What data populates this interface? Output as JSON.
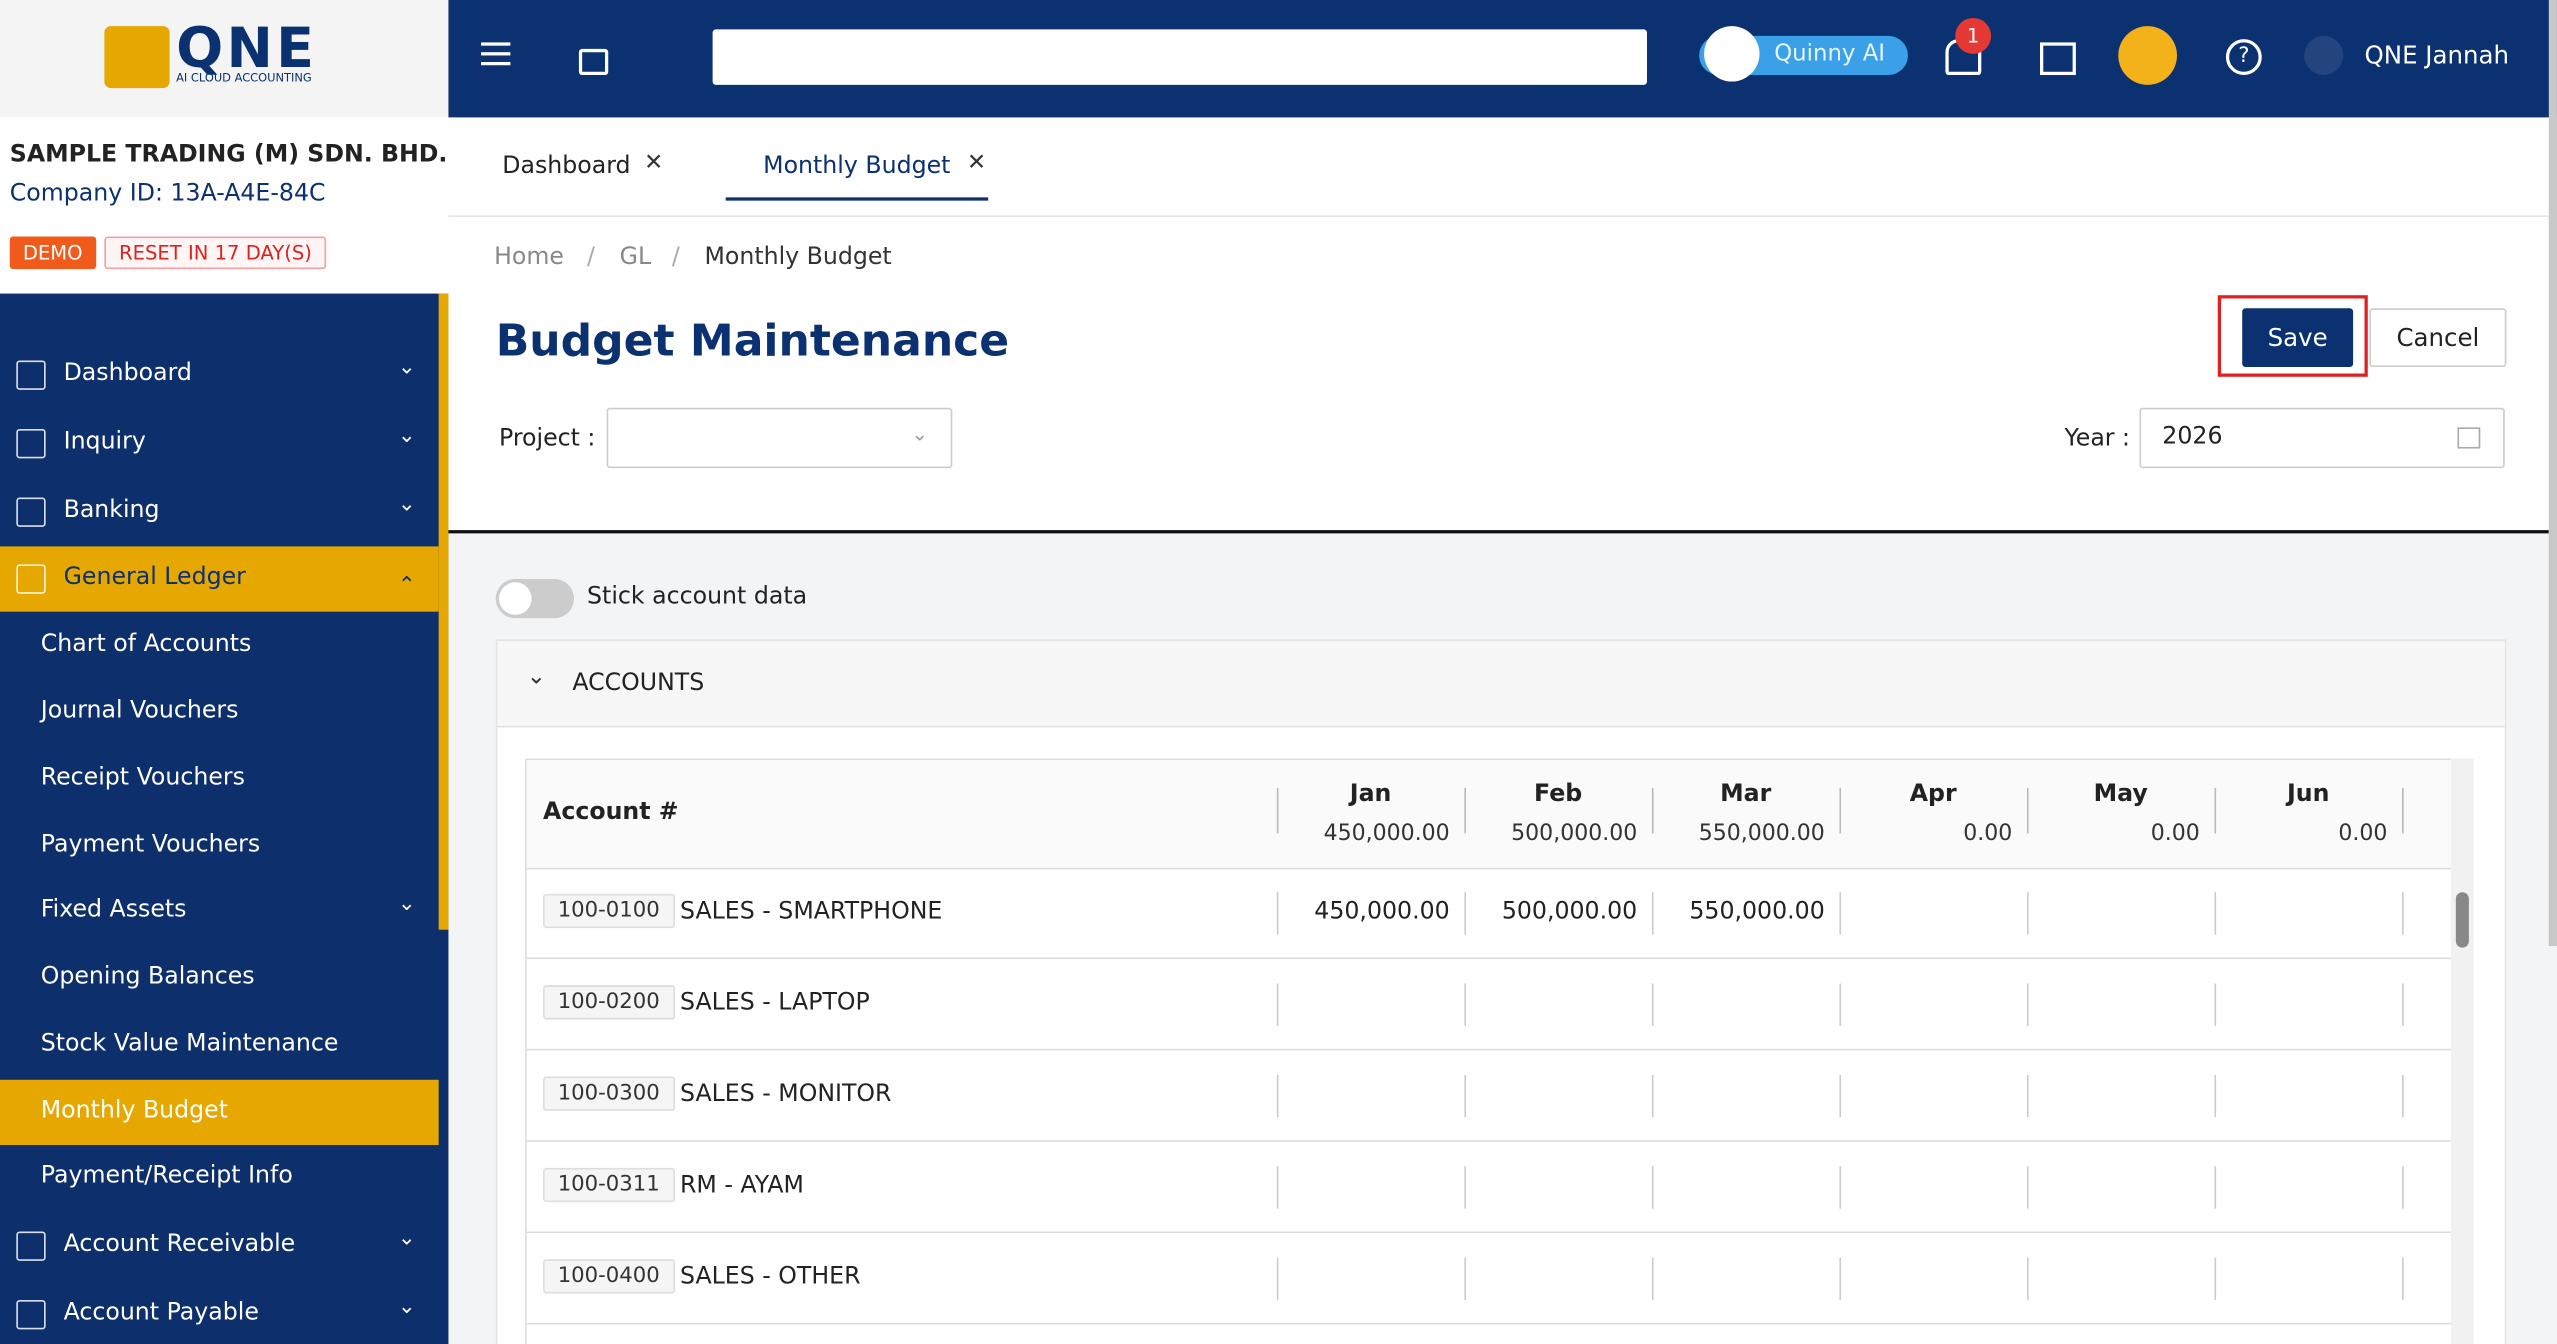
{
  "logo": {
    "name": "QNE",
    "tagline": "AI CLOUD ACCOUNTING"
  },
  "company": {
    "name": "SAMPLE TRADING (M) SDN. BHD.",
    "id": "Company ID: 13A-A4E-84C",
    "badges": [
      "DEMO",
      "RESET IN 17 DAY(S)"
    ]
  },
  "sidebar": {
    "items": [
      {
        "label": "Dashboard",
        "level": 1,
        "chevron": "down"
      },
      {
        "label": "Inquiry",
        "level": 1,
        "chevron": "down"
      },
      {
        "label": "Banking",
        "level": 1,
        "chevron": "down"
      },
      {
        "label": "General Ledger",
        "level": 1,
        "chevron": "up",
        "active": true
      },
      {
        "label": "Chart of Accounts",
        "level": 2
      },
      {
        "label": "Journal Vouchers",
        "level": 2
      },
      {
        "label": "Receipt Vouchers",
        "level": 2
      },
      {
        "label": "Payment Vouchers",
        "level": 2
      },
      {
        "label": "Fixed Assets",
        "level": 2,
        "chevron": "down"
      },
      {
        "label": "Opening Balances",
        "level": 2
      },
      {
        "label": "Stock Value Maintenance",
        "level": 2
      },
      {
        "label": "Monthly Budget",
        "level": 2,
        "active": true
      },
      {
        "label": "Payment/Receipt Info",
        "level": 2
      },
      {
        "label": "Account Receivable",
        "level": 1,
        "chevron": "down"
      },
      {
        "label": "Account Payable",
        "level": 1,
        "chevron": "down"
      }
    ]
  },
  "header": {
    "assistant": "Quinny AI",
    "notifications": "1",
    "user": "QNE Jannah"
  },
  "tabs": [
    "Dashboard",
    "Monthly Budget"
  ],
  "breadcrumb": [
    "Home",
    "GL",
    "Monthly Budget"
  ],
  "page": {
    "title": "Budget Maintenance",
    "save": "Save",
    "cancel": "Cancel",
    "project_label": "Project :",
    "year_label": "Year :",
    "year": "2026",
    "toggle_label": "Stick account data",
    "section": "ACCOUNTS"
  },
  "table": {
    "account_header": "Account #",
    "months": [
      {
        "name": "Jan",
        "total": "450,000.00"
      },
      {
        "name": "Feb",
        "total": "500,000.00"
      },
      {
        "name": "Mar",
        "total": "550,000.00"
      },
      {
        "name": "Apr",
        "total": "0.00"
      },
      {
        "name": "May",
        "total": "0.00"
      },
      {
        "name": "Jun",
        "total": "0.00"
      }
    ],
    "rows": [
      {
        "code": "100-0100",
        "name": "SALES - SMARTPHONE",
        "values": [
          "450,000.00",
          "500,000.00",
          "550,000.00",
          null,
          null,
          null
        ]
      },
      {
        "code": "100-0200",
        "name": "SALES - LAPTOP",
        "values": [
          null,
          null,
          null,
          null,
          null,
          null
        ]
      },
      {
        "code": "100-0300",
        "name": "SALES - MONITOR",
        "values": [
          null,
          null,
          null,
          null,
          null,
          null
        ]
      },
      {
        "code": "100-0311",
        "name": "RM - AYAM",
        "values": [
          null,
          null,
          null,
          null,
          null,
          null
        ]
      },
      {
        "code": "100-0400",
        "name": "SALES - OTHER",
        "values": [
          null,
          null,
          null,
          null,
          null,
          null
        ]
      }
    ]
  }
}
